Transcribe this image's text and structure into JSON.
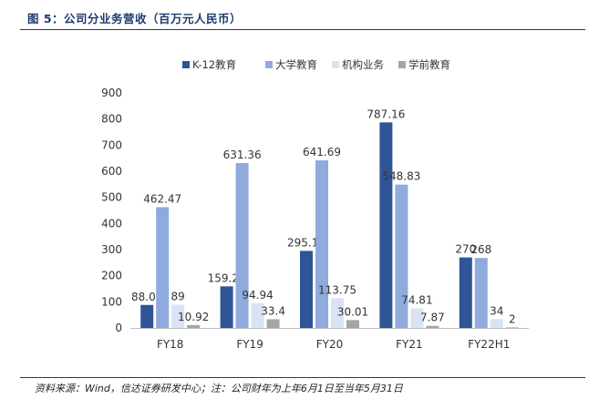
{
  "figure": {
    "title": "图 5：公司分业务营收（百万元人民币）",
    "source": "资料来源：Wind，信达证券研发中心；注：公司财年为上年6月1日至当年5月31日"
  },
  "chart_data": {
    "type": "bar",
    "title": "",
    "xlabel": "",
    "ylabel": "",
    "ylim": [
      0,
      900
    ],
    "yticks": [
      0,
      100,
      200,
      300,
      400,
      500,
      600,
      700,
      800,
      900
    ],
    "grid": false,
    "legend_position": "top",
    "categories": [
      "FY18",
      "FY19",
      "FY20",
      "FY21",
      "FY22H1"
    ],
    "series": [
      {
        "name": "K-12教育",
        "color": "#2f5597",
        "values": [
          88.07,
          159.21,
          295.14,
          787.16,
          270
        ],
        "labels": [
          "88.07",
          "159.21",
          "295.14",
          "787.16",
          "270"
        ]
      },
      {
        "name": "大学教育",
        "color": "#8faadc",
        "values": [
          462.47,
          631.36,
          641.69,
          548.83,
          268
        ],
        "labels": [
          "462.47",
          "631.36",
          "641.69",
          "548.83",
          "268"
        ]
      },
      {
        "name": "机构业务",
        "color": "#dae3f3",
        "values": [
          89,
          94.94,
          113.75,
          74.81,
          34
        ],
        "labels": [
          "89",
          "94.94",
          "113.75",
          "74.81",
          "34"
        ]
      },
      {
        "name": "学前教育",
        "color": "#a5a5a5",
        "values": [
          10.92,
          33.4,
          30.01,
          7.87,
          2
        ],
        "labels": [
          "10.92",
          "33.4",
          "30.01",
          "7.87",
          "2"
        ]
      }
    ]
  }
}
